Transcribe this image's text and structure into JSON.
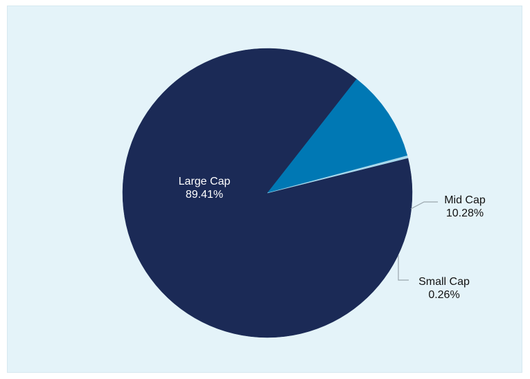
{
  "chart_data": {
    "type": "pie",
    "title": "",
    "slices": [
      {
        "label": "Large Cap",
        "value": 89.41,
        "display": "89.41%",
        "color": "#1b2a56"
      },
      {
        "label": "Mid Cap",
        "value": 10.28,
        "display": "10.28%",
        "color": "#0078b4"
      },
      {
        "label": "Small Cap",
        "value": 0.26,
        "display": "0.26%",
        "color": "#a8d8ec"
      }
    ],
    "start_angle_deg": 346,
    "direction": "clockwise",
    "legend": "none",
    "background_color": "#e4f3f9",
    "label_colors": {
      "inside": "#ffffff",
      "outside": "#111111",
      "leader": "#9aa6ad"
    }
  }
}
